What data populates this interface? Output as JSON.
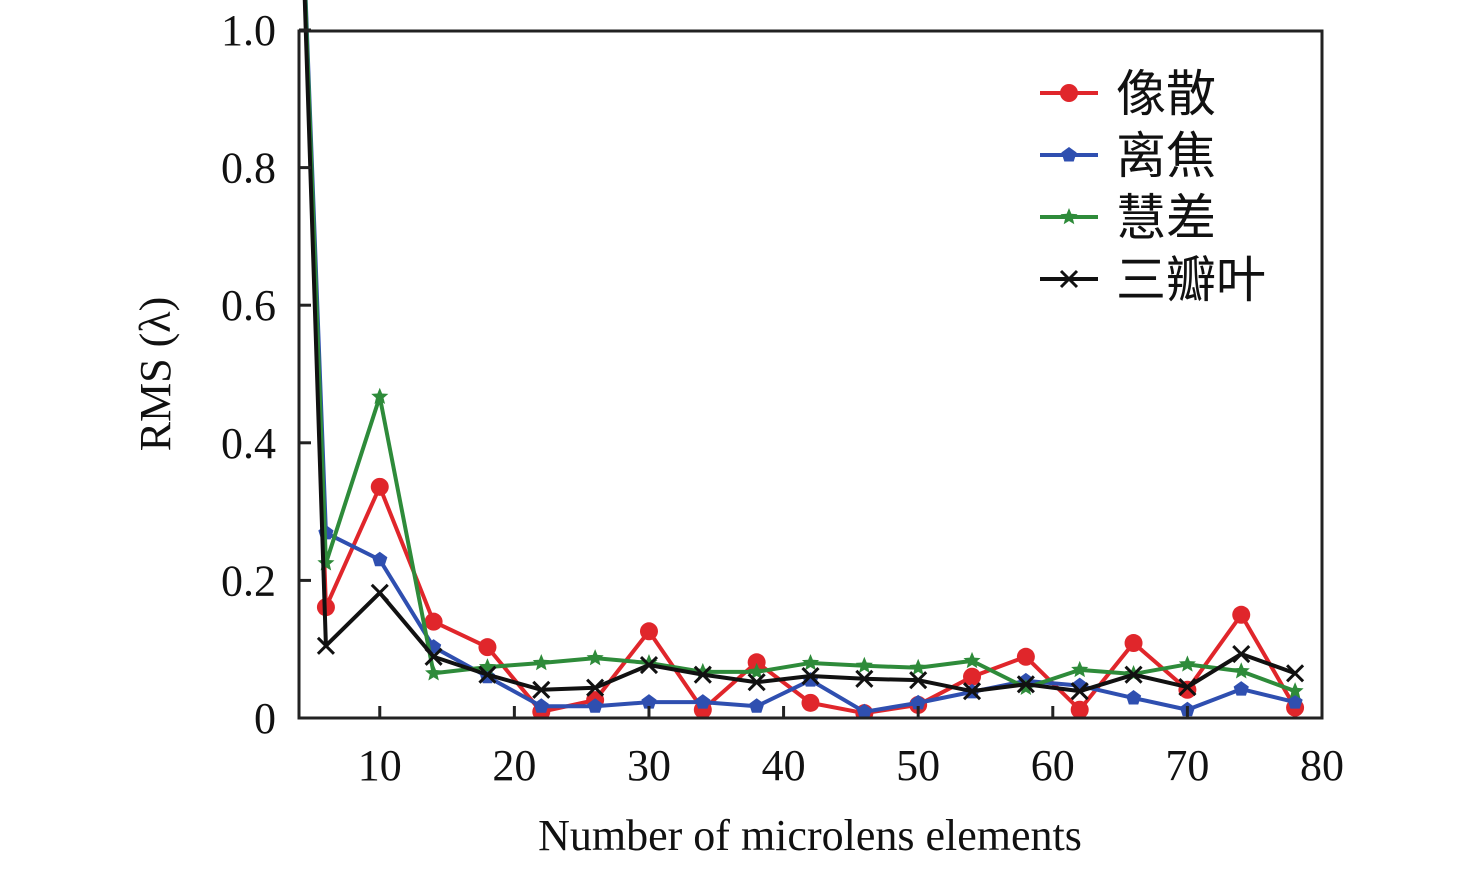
{
  "chart_data": {
    "type": "line",
    "title": "",
    "xlabel": "Number of microlens elements",
    "ylabel": "RMS (λ)",
    "xlim": [
      4,
      80
    ],
    "ylim": [
      0,
      1.0
    ],
    "xticks": [
      10,
      20,
      30,
      40,
      50,
      60,
      70,
      80
    ],
    "xtick_labels": [
      "10",
      "20",
      "30",
      "40",
      "50",
      "60",
      "70",
      "80"
    ],
    "yticks": [
      0,
      0.2,
      0.4,
      0.6,
      0.8,
      1.0
    ],
    "ytick_labels": [
      "0",
      "0.2",
      "0.4",
      "0.6",
      "0.8",
      "1.0"
    ],
    "grid": false,
    "legend_position": "top-right",
    "x": [
      4,
      6,
      10,
      14,
      18,
      22,
      26,
      30,
      34,
      38,
      42,
      46,
      50,
      54,
      58,
      62,
      66,
      70,
      74,
      78
    ],
    "series": [
      {
        "name": "像散",
        "color": "#e0262b",
        "marker": "circle",
        "values": [
          1.3,
          0.161,
          0.336,
          0.14,
          0.103,
          0.009,
          0.026,
          0.126,
          0.012,
          0.081,
          0.022,
          0.007,
          0.019,
          0.06,
          0.089,
          0.012,
          0.109,
          0.041,
          0.15,
          0.015
        ]
      },
      {
        "name": "离焦",
        "color": "#2f4fb0",
        "marker": "pentagon",
        "values": [
          1.3,
          0.269,
          0.23,
          0.103,
          0.06,
          0.017,
          0.017,
          0.023,
          0.023,
          0.017,
          0.055,
          0.009,
          0.022,
          0.038,
          0.054,
          0.047,
          0.029,
          0.012,
          0.042,
          0.023
        ]
      },
      {
        "name": "慧差",
        "color": "#2e8b3a",
        "marker": "star",
        "values": [
          1.3,
          0.225,
          0.467,
          0.065,
          0.074,
          0.08,
          0.087,
          0.08,
          0.067,
          0.067,
          0.08,
          0.076,
          0.073,
          0.083,
          0.044,
          0.07,
          0.064,
          0.078,
          0.068,
          0.039
        ]
      },
      {
        "name": "三瓣叶",
        "color": "#111111",
        "marker": "x",
        "values": [
          1.3,
          0.105,
          0.182,
          0.089,
          0.063,
          0.041,
          0.044,
          0.077,
          0.063,
          0.052,
          0.061,
          0.057,
          0.055,
          0.039,
          0.049,
          0.039,
          0.063,
          0.045,
          0.093,
          0.065
        ]
      }
    ]
  }
}
